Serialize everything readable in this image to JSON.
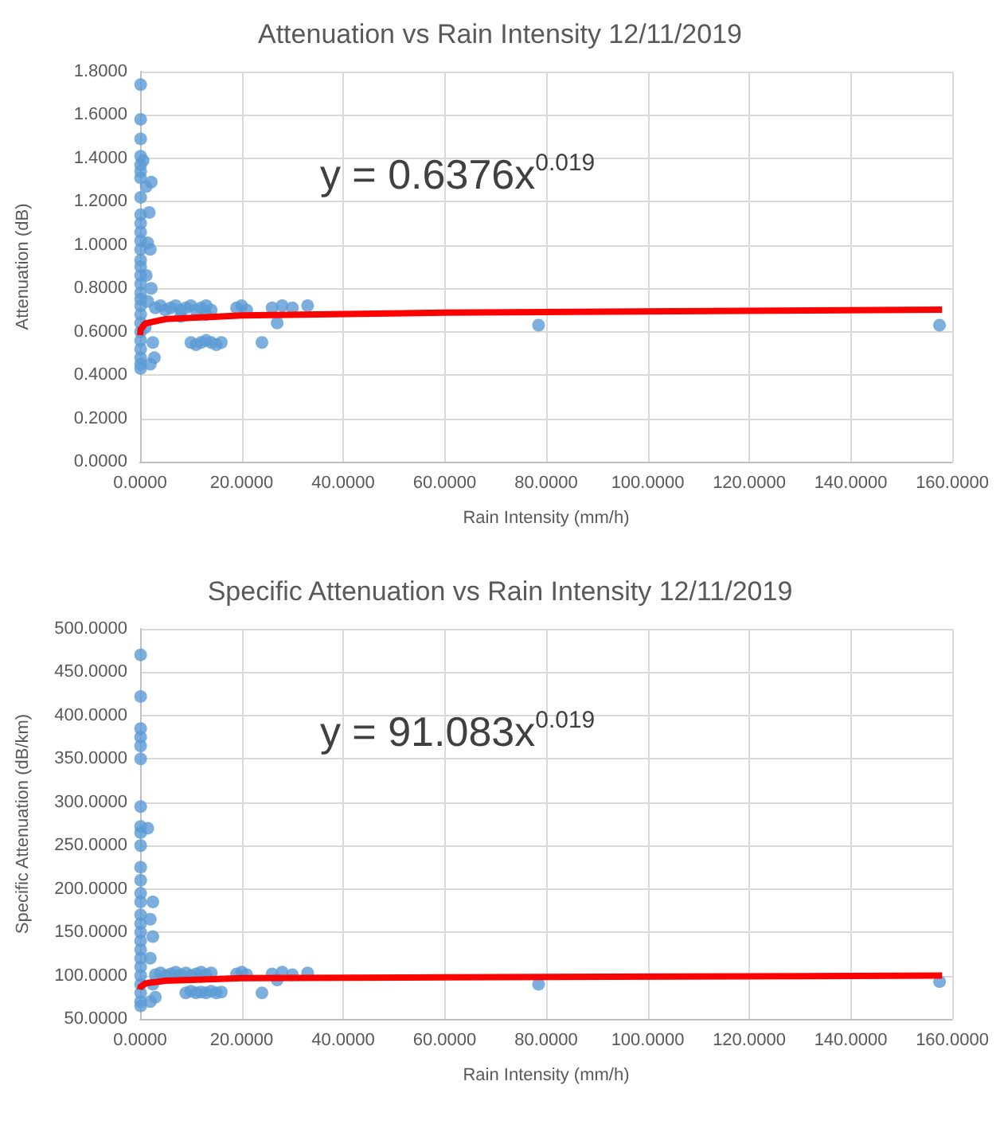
{
  "chart_data": [
    {
      "type": "scatter",
      "title": "Attenuation vs Rain Intensity 12/11/2019",
      "xlabel": "Rain Intensity (mm/h)",
      "ylabel": "Attenuation (dB)",
      "grid": true,
      "xlim": [
        0,
        160
      ],
      "xticks": [
        {
          "value": 0,
          "label": "0.0000"
        },
        {
          "value": 20,
          "label": "20.0000"
        },
        {
          "value": 40,
          "label": "40.0000"
        },
        {
          "value": 60,
          "label": "60.0000"
        },
        {
          "value": 80,
          "label": "80.0000"
        },
        {
          "value": 100,
          "label": "100.0000"
        },
        {
          "value": 120,
          "label": "120.0000"
        },
        {
          "value": 140,
          "label": "140.0000"
        },
        {
          "value": 160,
          "label": "160.0000"
        }
      ],
      "ylim": [
        0,
        1.8
      ],
      "yticks": [
        {
          "value": 0,
          "label": "0.0000"
        },
        {
          "value": 0.2,
          "label": "0.2000"
        },
        {
          "value": 0.4,
          "label": "0.4000"
        },
        {
          "value": 0.6,
          "label": "0.6000"
        },
        {
          "value": 0.8,
          "label": "0.8000"
        },
        {
          "value": 1,
          "label": "1.0000"
        },
        {
          "value": 1.2,
          "label": "1.2000"
        },
        {
          "value": 1.4,
          "label": "1.4000"
        },
        {
          "value": 1.6,
          "label": "1.6000"
        },
        {
          "value": 1.8,
          "label": "1.8000"
        }
      ],
      "annotations": [
        "y = 0.6376x$^{0.019}$"
      ],
      "series": [
        {
          "marker": "circle",
          "color": "#5b9bd5",
          "x": [
            0.1,
            0.1,
            0.1,
            0.1,
            0.1,
            0.1,
            0.1,
            0.1,
            0.1,
            0.1,
            0.1,
            0.1,
            0.1,
            0.1,
            0.1,
            0.1,
            0.1,
            0.1,
            0.1,
            0.1,
            0.1,
            0.1,
            0.1,
            0.1,
            0.1,
            0.1,
            0.1,
            0.1,
            0.6,
            1.2,
            2.2,
            1.8,
            1.5,
            2,
            1.2,
            2.2,
            1.5,
            2.5,
            2.8,
            2,
            1,
            3,
            4,
            5,
            6,
            7,
            8,
            9,
            10,
            11,
            12,
            13,
            14,
            19,
            20,
            21,
            26,
            28,
            30,
            33,
            8,
            13,
            10,
            11,
            12,
            13,
            14,
            15,
            16,
            24,
            27,
            78.5,
            157.5
          ],
          "values": [
            1.74,
            1.58,
            1.49,
            1.41,
            1.37,
            1.34,
            1.31,
            1.22,
            1.14,
            1.1,
            1.06,
            1.02,
            0.98,
            0.93,
            0.9,
            0.86,
            0.82,
            0.78,
            0.75,
            0.72,
            0.68,
            0.64,
            0.6,
            0.56,
            0.52,
            0.48,
            0.45,
            0.43,
            1.39,
            1.27,
            1.29,
            1.15,
            1.01,
            0.98,
            0.86,
            0.8,
            0.74,
            0.55,
            0.48,
            0.45,
            0.62,
            0.71,
            0.72,
            0.7,
            0.71,
            0.72,
            0.7,
            0.71,
            0.72,
            0.7,
            0.71,
            0.72,
            0.7,
            0.71,
            0.72,
            0.7,
            0.71,
            0.72,
            0.71,
            0.72,
            0.67,
            0.68,
            0.55,
            0.54,
            0.55,
            0.56,
            0.55,
            0.54,
            0.55,
            0.55,
            0.64,
            0.63,
            0.63
          ]
        },
        {
          "type": "line",
          "marker": "none",
          "color": "#ff0000",
          "x": [
            0.01,
            0.1,
            1,
            5,
            20,
            60,
            158
          ],
          "values": [
            0.584,
            0.61,
            0.638,
            0.658,
            0.675,
            0.688,
            0.702
          ]
        }
      ]
    },
    {
      "type": "scatter",
      "title": "Specific Attenuation vs Rain Intensity 12/11/2019",
      "xlabel": "Rain Intensity (mm/h)",
      "ylabel": "Specific Attenuation (dB/km)",
      "grid": true,
      "xlim": [
        0,
        160
      ],
      "xticks": [
        {
          "value": 0,
          "label": "0.0000"
        },
        {
          "value": 20,
          "label": "20.0000"
        },
        {
          "value": 40,
          "label": "40.0000"
        },
        {
          "value": 60,
          "label": "60.0000"
        },
        {
          "value": 80,
          "label": "80.0000"
        },
        {
          "value": 100,
          "label": "100.0000"
        },
        {
          "value": 120,
          "label": "120.0000"
        },
        {
          "value": 140,
          "label": "140.0000"
        },
        {
          "value": 160,
          "label": "160.0000"
        }
      ],
      "ylim": [
        50,
        500
      ],
      "yticks": [
        {
          "value": 50,
          "label": "50.0000"
        },
        {
          "value": 100,
          "label": "100.0000"
        },
        {
          "value": 150,
          "label": "150.0000"
        },
        {
          "value": 200,
          "label": "200.0000"
        },
        {
          "value": 250,
          "label": "250.0000"
        },
        {
          "value": 300,
          "label": "300.0000"
        },
        {
          "value": 350,
          "label": "350.0000"
        },
        {
          "value": 400,
          "label": "400.0000"
        },
        {
          "value": 450,
          "label": "450.0000"
        },
        {
          "value": 500,
          "label": "500.0000"
        }
      ],
      "annotations": [
        "y = 91.083x$^{0.019}$"
      ],
      "series": [
        {
          "marker": "circle",
          "color": "#5b9bd5",
          "x": [
            0.1,
            0.1,
            0.1,
            0.1,
            0.1,
            0.1,
            0.1,
            0.1,
            0.1,
            0.1,
            0.1,
            0.1,
            0.1,
            0.1,
            0.1,
            0.1,
            0.1,
            0.1,
            0.1,
            0.1,
            0.1,
            0.1,
            0.1,
            0.1,
            0.1,
            0.1,
            2.5,
            1.5,
            2,
            2.5,
            2,
            2.5,
            3,
            2,
            3,
            4,
            5,
            6,
            7,
            8,
            9,
            10,
            11,
            12,
            13,
            14,
            19,
            20,
            21,
            26,
            28,
            30,
            33,
            9,
            10,
            11,
            12,
            13,
            14,
            15,
            16,
            24,
            27,
            78.5,
            157.5
          ],
          "values": [
            470,
            422,
            385,
            375,
            365,
            350,
            295,
            272,
            265,
            250,
            225,
            210,
            195,
            185,
            170,
            160,
            150,
            140,
            130,
            120,
            110,
            100,
            90,
            80,
            70,
            65,
            185,
            270,
            165,
            145,
            120,
            90,
            75,
            70,
            101,
            103,
            100,
            102,
            104,
            101,
            103,
            100,
            102,
            104,
            101,
            103,
            102,
            104,
            101,
            102,
            104,
            101,
            103,
            80,
            82,
            80,
            81,
            80,
            82,
            80,
            81,
            80,
            95,
            90,
            93
          ]
        },
        {
          "type": "line",
          "marker": "none",
          "color": "#ff0000",
          "x": [
            0.01,
            0.1,
            1,
            5,
            20,
            60,
            158
          ],
          "values": [
            84,
            87,
            91,
            94,
            97,
            98,
            100
          ]
        }
      ]
    }
  ]
}
